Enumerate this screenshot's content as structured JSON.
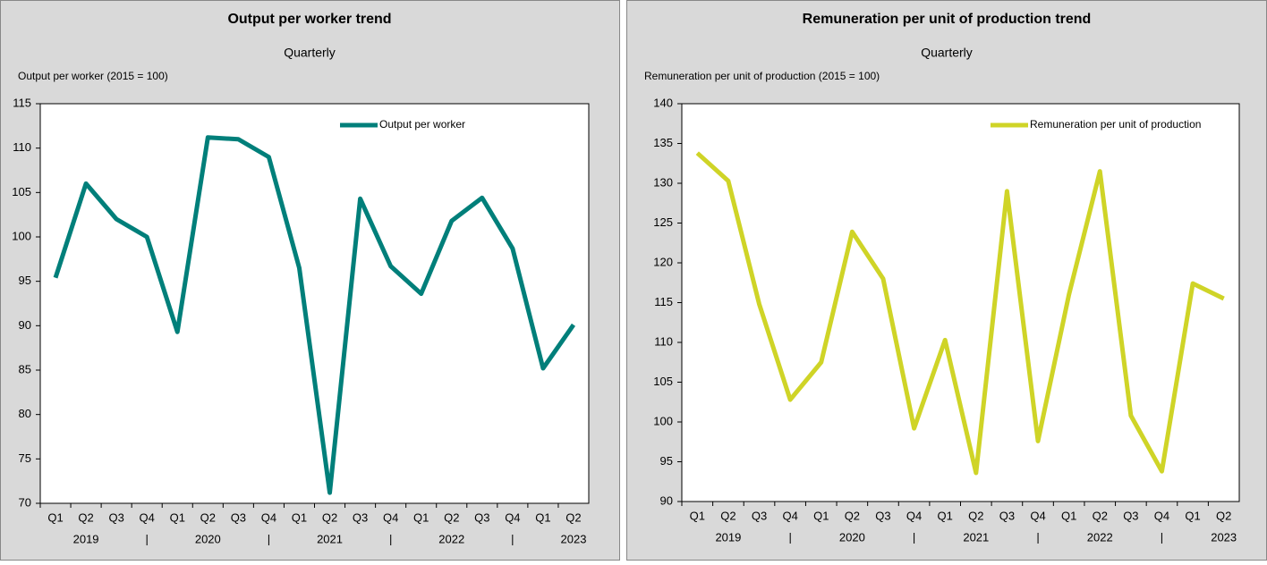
{
  "chart_data": [
    {
      "type": "line",
      "title": "Output per worker trend",
      "subtitle": "Quarterly",
      "y_label": "Output per worker (2015 = 100)",
      "categories": [
        "Q1",
        "Q2",
        "Q3",
        "Q4",
        "Q1",
        "Q2",
        "Q3",
        "Q4",
        "Q1",
        "Q2",
        "Q3",
        "Q4",
        "Q1",
        "Q2",
        "Q3",
        "Q4",
        "Q1",
        "Q2"
      ],
      "year_labels": [
        null,
        "2019",
        null,
        "|",
        null,
        "2020",
        null,
        "|",
        null,
        "2021",
        null,
        "|",
        null,
        "2022",
        null,
        "|",
        null,
        "2023"
      ],
      "series": [
        {
          "name": "Output per worker",
          "color": "#007f7a",
          "values": [
            95.4,
            106,
            102,
            100,
            89.3,
            111.2,
            111,
            109,
            96.5,
            71.2,
            104.3,
            96.7,
            93.6,
            101.8,
            104.4,
            98.7,
            85.2,
            90.1
          ]
        }
      ],
      "ylim": [
        70,
        115
      ],
      "yticks": [
        70,
        75,
        80,
        85,
        90,
        95,
        100,
        105,
        110,
        115
      ],
      "legend": "top-right",
      "grid": false
    },
    {
      "type": "line",
      "title": "Remuneration per unit of production trend",
      "subtitle": "Quarterly",
      "y_label": "Remuneration per unit of production (2015 = 100)",
      "categories": [
        "Q1",
        "Q2",
        "Q3",
        "Q4",
        "Q1",
        "Q2",
        "Q3",
        "Q4",
        "Q1",
        "Q2",
        "Q3",
        "Q4",
        "Q1",
        "Q2",
        "Q3",
        "Q4",
        "Q1",
        "Q2"
      ],
      "year_labels": [
        null,
        "2019",
        null,
        "|",
        null,
        "2020",
        null,
        "|",
        null,
        "2021",
        null,
        "|",
        null,
        "2022",
        null,
        "|",
        null,
        "2023"
      ],
      "series": [
        {
          "name": "Remuneration per unit of production",
          "color": "#cfd427",
          "values": [
            133.8,
            130.3,
            114.8,
            102.8,
            107.5,
            123.9,
            118,
            99.2,
            110.3,
            93.6,
            129,
            97.6,
            116,
            131.5,
            100.8,
            93.8,
            117.4,
            115.5
          ]
        }
      ],
      "ylim": [
        90,
        140
      ],
      "yticks": [
        90,
        95,
        100,
        105,
        110,
        115,
        120,
        125,
        130,
        135,
        140
      ],
      "legend": "top-right",
      "grid": false
    }
  ]
}
